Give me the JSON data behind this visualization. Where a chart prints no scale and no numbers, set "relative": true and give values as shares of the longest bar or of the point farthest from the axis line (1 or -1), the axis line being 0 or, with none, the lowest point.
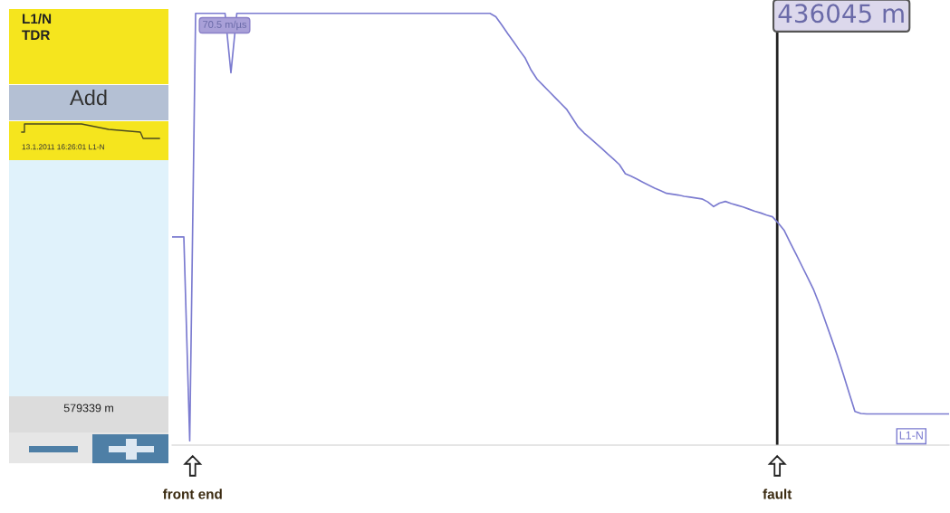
{
  "chart_data": {
    "type": "line",
    "relative": true,
    "categories": [
      null,
      null,
      null,
      null,
      null,
      null,
      null,
      null,
      null,
      null,
      null,
      null,
      null,
      null,
      null,
      null,
      null,
      null,
      null,
      null,
      null,
      null,
      null,
      null,
      null,
      null,
      null,
      null,
      null,
      null,
      null,
      null,
      null,
      null,
      null,
      null,
      null,
      null,
      null,
      null,
      null,
      null,
      null,
      null,
      null,
      null,
      null,
      null,
      null,
      null,
      null,
      null,
      null,
      null,
      null,
      null,
      null,
      null,
      null,
      null,
      null,
      null,
      null,
      null,
      null,
      null,
      null,
      null,
      null,
      null,
      null,
      null,
      null,
      null,
      null,
      null,
      null,
      null,
      null,
      null,
      null,
      null,
      null,
      null,
      null,
      null,
      null,
      null,
      null,
      null,
      null,
      null,
      null,
      null,
      null,
      null,
      null,
      null,
      null,
      null,
      null,
      null,
      null,
      null,
      null,
      null,
      null,
      null,
      null,
      null,
      null,
      null,
      null,
      null,
      null,
      null,
      null,
      null,
      null,
      null,
      null,
      null,
      null,
      null,
      null,
      null,
      null,
      null,
      null,
      null,
      null,
      null,
      null
    ],
    "series": [
      {
        "name": "L1-N",
        "color": "#7b7bd0",
        "values": [
          0.477,
          0.477,
          0.477,
          0,
          1,
          1,
          1,
          1,
          1,
          1,
          0.861,
          1,
          1,
          1,
          1,
          1,
          1,
          1,
          1,
          1,
          1,
          1,
          1,
          1,
          1,
          1,
          1,
          1,
          1,
          1,
          1,
          1,
          1,
          1,
          1,
          1,
          1,
          1,
          1,
          1,
          1,
          1,
          1,
          1,
          1,
          1,
          1,
          1,
          1,
          1,
          1,
          1,
          1,
          1,
          1,
          0.992,
          0.973,
          0.953,
          0.934,
          0.914,
          0.895,
          0.867,
          0.846,
          0.832,
          0.818,
          0.804,
          0.79,
          0.776,
          0.755,
          0.734,
          0.72,
          0.708,
          0.696,
          0.684,
          0.671,
          0.659,
          0.646,
          0.625,
          0.619,
          0.612,
          0.605,
          0.598,
          0.591,
          0.585,
          0.579,
          0.577,
          0.575,
          0.572,
          0.57,
          0.568,
          0.566,
          0.559,
          0.548,
          0.556,
          0.56,
          0.555,
          0.551,
          0.547,
          0.542,
          0.537,
          0.533,
          0.528,
          0.524,
          0.509,
          0.492,
          0.464,
          0.437,
          0.409,
          0.381,
          0.353,
          0.318,
          0.279,
          0.24,
          0.2,
          0.157,
          0.113,
          0.069,
          0.064,
          0.063,
          0.063,
          0.063,
          0.063,
          0.063,
          0.063,
          0.063,
          0.063,
          0.063,
          0.063,
          0.063,
          0.063,
          0.063,
          0.063,
          0.063
        ]
      }
    ],
    "annotations": [
      "L1/N",
      "TDR",
      "Add",
      "13.1.2011 16:26:01 L1-N",
      "579339 m",
      "70.5 m/µs",
      "436045 m",
      "front end",
      "fault"
    ],
    "legend": false
  }
}
